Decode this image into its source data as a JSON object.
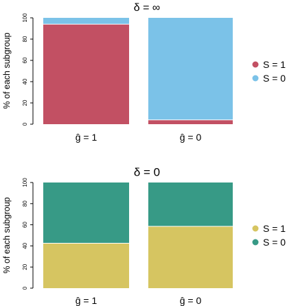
{
  "chart_data": [
    {
      "type": "bar",
      "stacked": true,
      "title": "δ = ∞",
      "ylabel": "% of each subgroup",
      "ylim": [
        0,
        100
      ],
      "yticks": [
        0,
        20,
        40,
        60,
        80,
        100
      ],
      "categories": [
        "ĝ = 1",
        "ĝ = 0"
      ],
      "series": [
        {
          "name": "S = 1",
          "color": "#c25063",
          "values": [
            94,
            4
          ]
        },
        {
          "name": "S = 0",
          "color": "#7bc2e8",
          "values": [
            6,
            96
          ]
        }
      ],
      "legend": {
        "placement": "right",
        "entries": [
          "S = 1",
          "S = 0"
        ]
      },
      "grid": false
    },
    {
      "type": "bar",
      "stacked": true,
      "title": "δ = 0",
      "ylabel": "% of each subgroup",
      "ylim": [
        0,
        100
      ],
      "yticks": [
        0,
        20,
        40,
        60,
        80,
        100
      ],
      "categories": [
        "ĝ = 1",
        "ĝ = 0"
      ],
      "series": [
        {
          "name": "S = 1",
          "color": "#d6c561",
          "values": [
            42.5,
            58.5
          ]
        },
        {
          "name": "S = 0",
          "color": "#379a86",
          "values": [
            57.5,
            41.5
          ]
        }
      ],
      "legend": {
        "placement": "right",
        "entries": [
          "S = 1",
          "S = 0"
        ]
      },
      "grid": false
    }
  ]
}
